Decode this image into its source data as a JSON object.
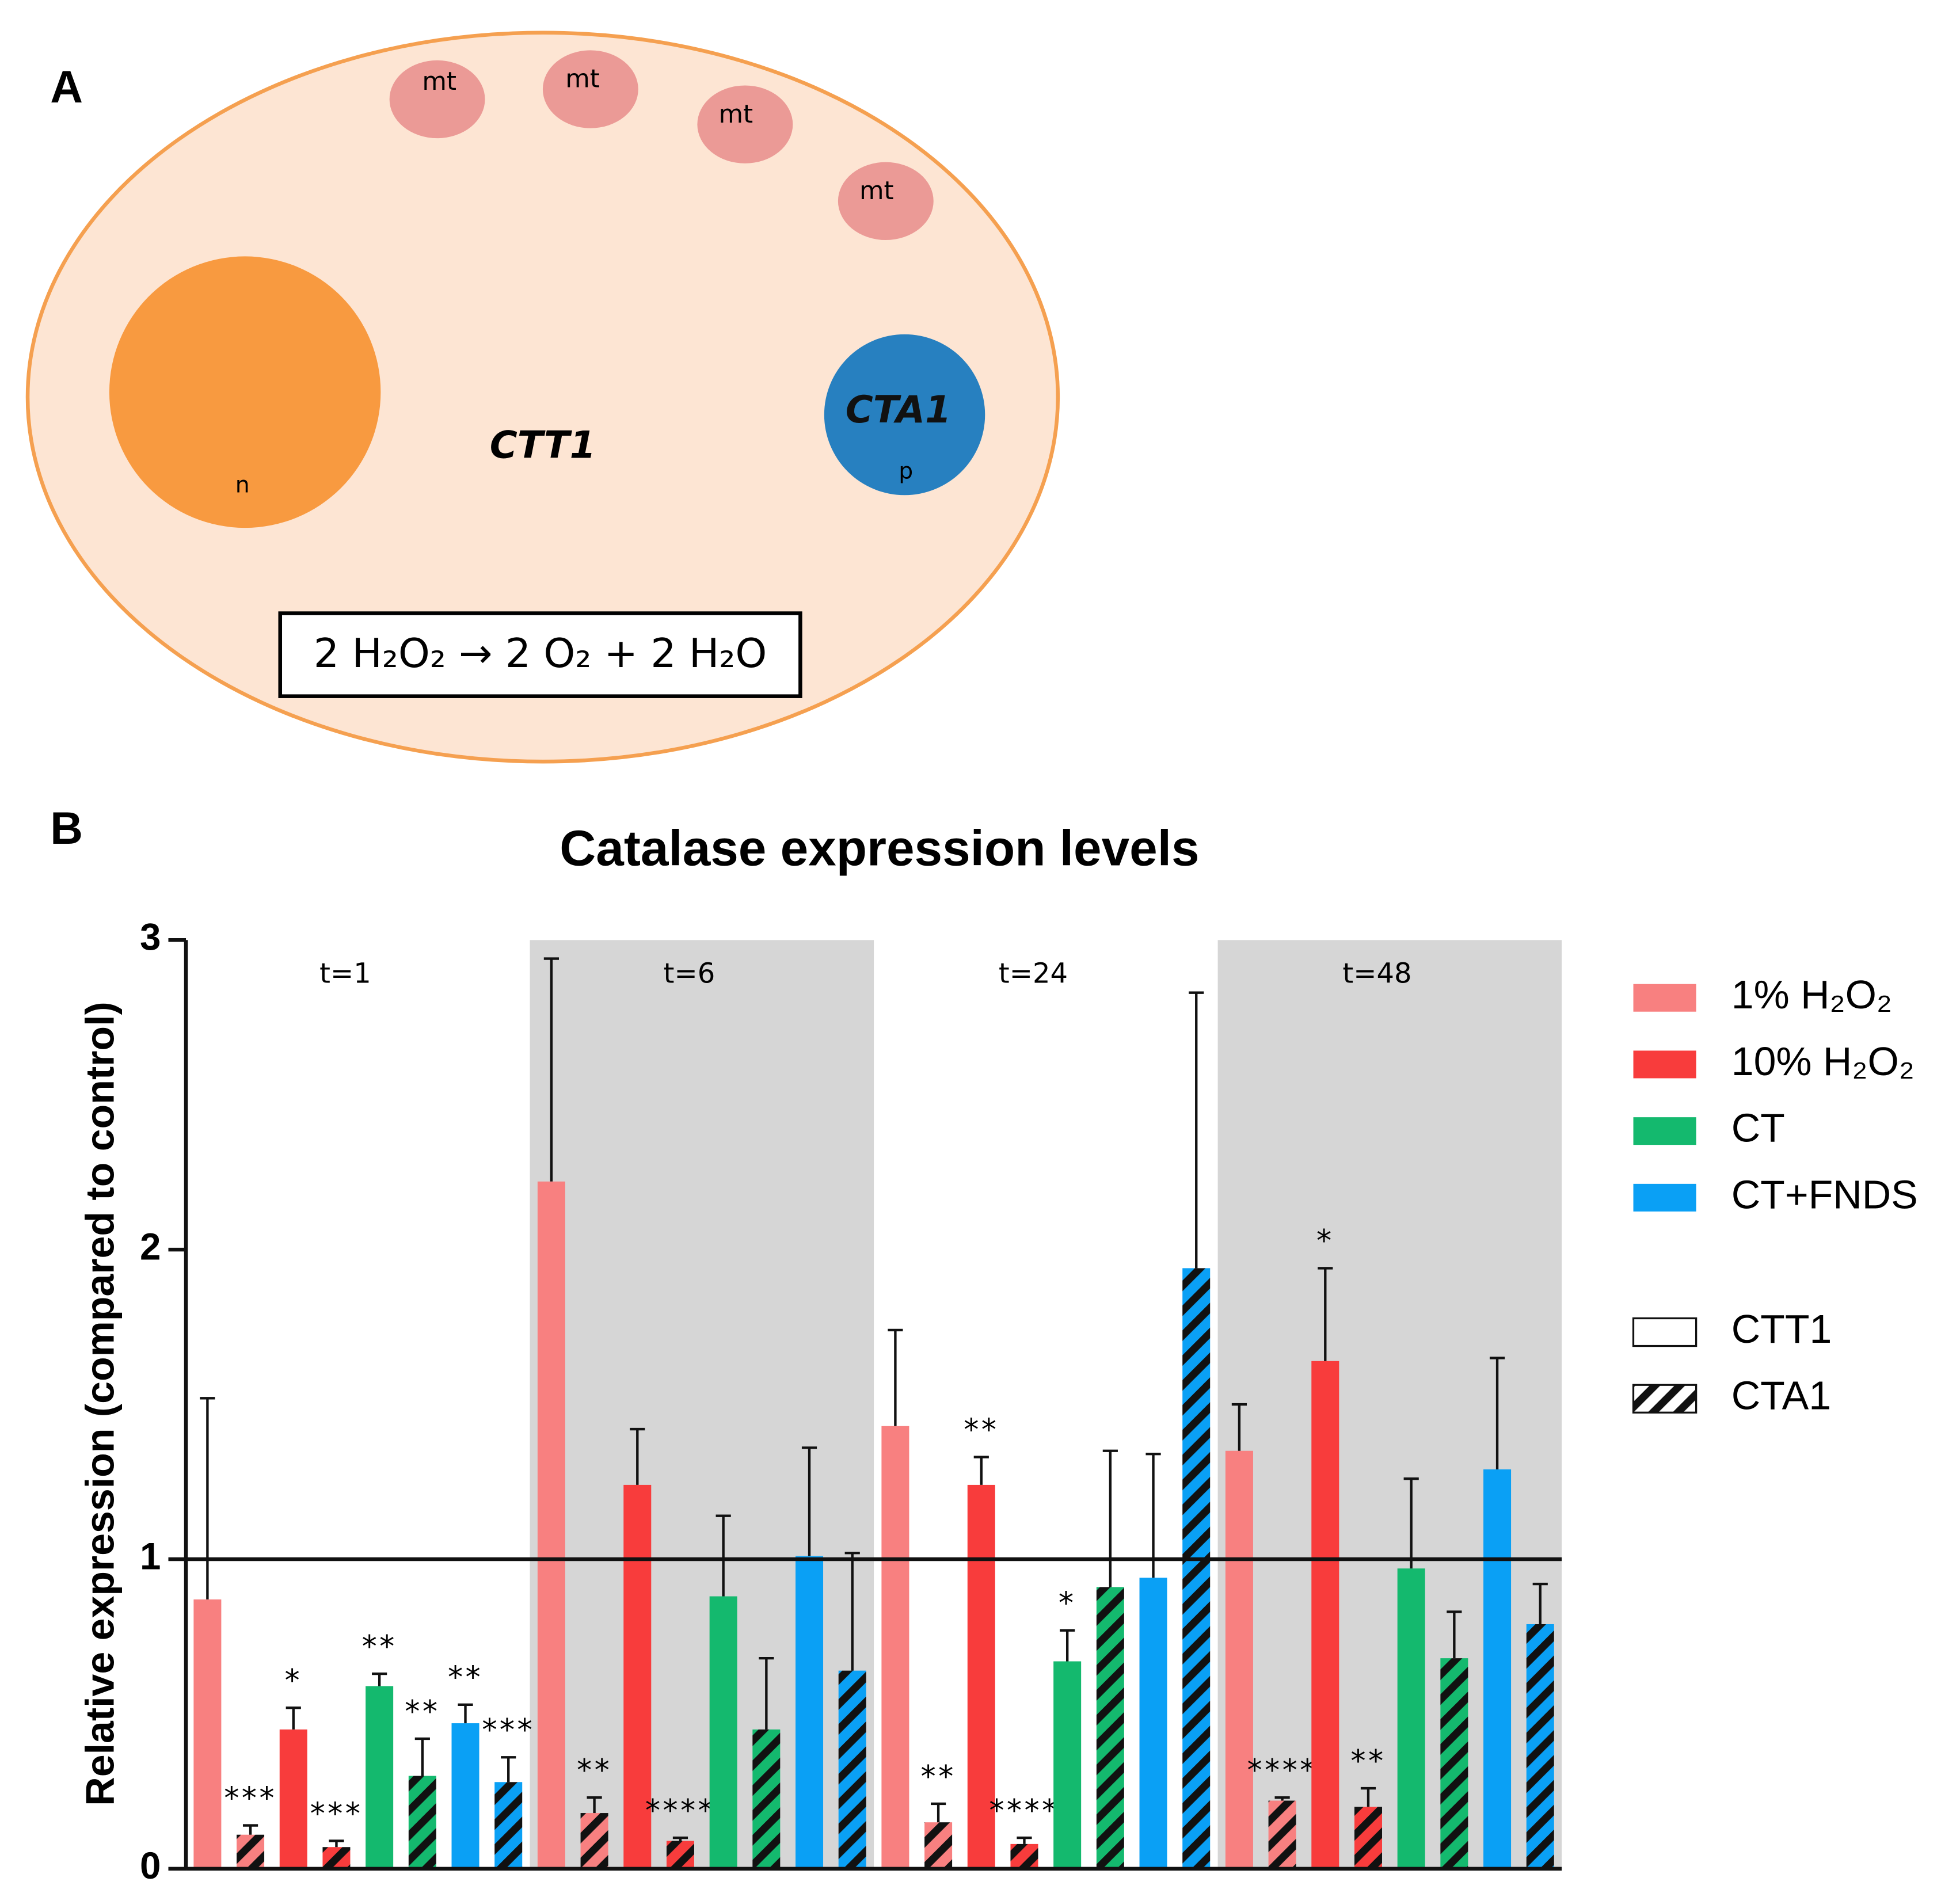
{
  "panel_a": {
    "letter": "A",
    "organelles": [
      "mt",
      "mt",
      "mt",
      "mt"
    ],
    "nucleus": "n",
    "cytosol_gene": "CTT1",
    "peroxisome_gene": "CTA1",
    "peroxisome": "p",
    "reaction": "2 H₂O₂ → 2 O₂ + 2 H₂O"
  },
  "chart_data": {
    "type": "bar",
    "panel_label": "B",
    "title": "Catalase expression levels",
    "y_label": "Relative expression (compared to control)",
    "categories": [
      "t=1",
      "t=6",
      "t=24",
      "t=48"
    ],
    "shaded": [
      false,
      true,
      false,
      true
    ],
    "ylim": [
      0,
      3
    ],
    "yticks": [
      0,
      1,
      2,
      3
    ],
    "reference_line": 1,
    "genes": [
      {
        "name": "CTT1",
        "pattern": "solid"
      },
      {
        "name": "CTA1",
        "pattern": "hatched"
      }
    ],
    "series": [
      {
        "name": "1% H₂O₂",
        "color": "#f88080",
        "by_gene": [
          {
            "values": [
              0.87,
              2.22,
              1.43,
              1.35
            ],
            "errors": [
              0.65,
              0.72,
              0.31,
              0.15
            ],
            "annotations": [
              null,
              null,
              null,
              null
            ]
          },
          {
            "values": [
              0.11,
              0.18,
              0.15,
              0.22
            ],
            "errors": [
              0.03,
              0.05,
              0.06,
              0.01
            ],
            "annotations": [
              "***",
              "**",
              "**",
              "****"
            ]
          }
        ]
      },
      {
        "name": "10% H₂O₂",
        "color": "#f83c3c",
        "by_gene": [
          {
            "values": [
              0.45,
              1.24,
              1.24,
              1.64
            ],
            "errors": [
              0.07,
              0.18,
              0.09,
              0.3
            ],
            "annotations": [
              "*",
              null,
              "**",
              "*"
            ]
          },
          {
            "values": [
              0.07,
              0.09,
              0.08,
              0.2
            ],
            "errors": [
              0.02,
              0.01,
              0.02,
              0.06
            ],
            "annotations": [
              "***",
              "****",
              "****",
              "**"
            ]
          }
        ]
      },
      {
        "name": "CT",
        "color": "#14b96e",
        "by_gene": [
          {
            "values": [
              0.59,
              0.88,
              0.67,
              0.97
            ],
            "errors": [
              0.04,
              0.26,
              0.1,
              0.29
            ],
            "annotations": [
              "**",
              null,
              "*",
              null
            ]
          },
          {
            "values": [
              0.3,
              0.45,
              0.91,
              0.68
            ],
            "errors": [
              0.12,
              0.23,
              0.44,
              0.15
            ],
            "annotations": [
              "**",
              null,
              null,
              null
            ]
          }
        ]
      },
      {
        "name": "CT+FNDS",
        "color": "#0aa0f5",
        "by_gene": [
          {
            "values": [
              0.47,
              1.01,
              0.94,
              1.29
            ],
            "errors": [
              0.06,
              0.35,
              0.4,
              0.36
            ],
            "annotations": [
              "**",
              null,
              null,
              null
            ]
          },
          {
            "values": [
              0.28,
              0.64,
              1.94,
              0.79
            ],
            "errors": [
              0.08,
              0.38,
              0.89,
              0.13
            ],
            "annotations": [
              "***",
              null,
              null,
              null
            ]
          }
        ]
      }
    ]
  }
}
